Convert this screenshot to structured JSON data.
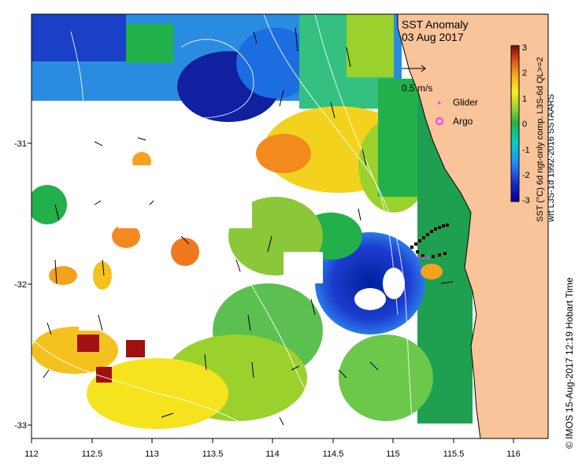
{
  "map": {
    "title": "SST Anomaly",
    "date": "03 Aug 2017",
    "scale_label": "0.5 m/s",
    "x_ticks": [
      "112",
      "112.5",
      "113",
      "113.5",
      "114",
      "114.5",
      "115",
      "115.5",
      "116"
    ],
    "y_ticks": [
      "-31",
      "-32",
      "-33"
    ],
    "legend": {
      "glider": "Glider",
      "argo": "Argo"
    },
    "colorbar": {
      "ticks": [
        "3",
        "2",
        "1",
        "0",
        "-1",
        "-2",
        "-3"
      ],
      "label_line1": "SST (°C) 6d ngt-only comp. L3S-6d QL>=2",
      "label_line2": "wrt L3S-1d 1992-2016 SSTAARS"
    },
    "footer": "© IMOS 15-Aug-2017 12:19 Hobart Time",
    "colors": {
      "land": "#f9c49a",
      "glider": "#000000",
      "argo": "#ff33ff",
      "frame": "#000000"
    }
  }
}
